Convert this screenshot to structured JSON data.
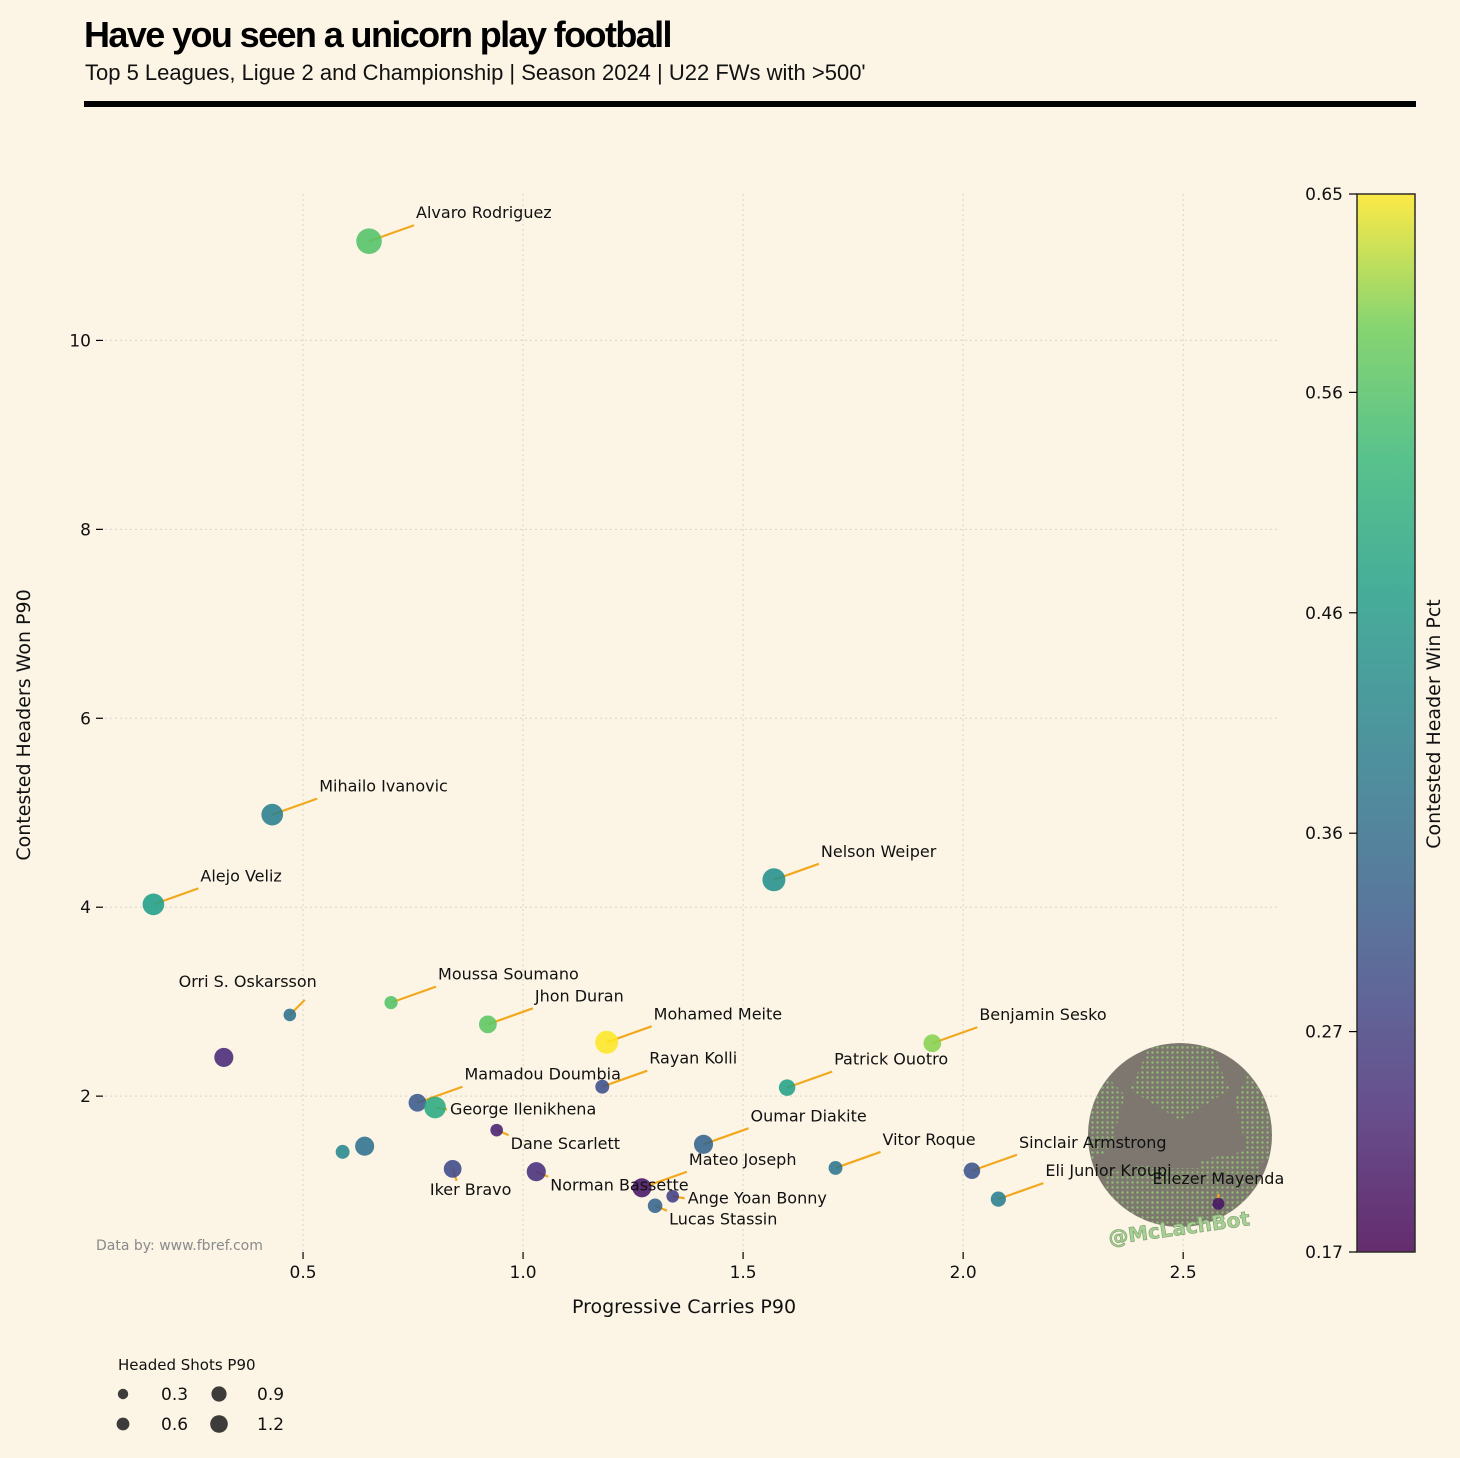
{
  "header": {
    "title": "Have you seen a unicorn play football",
    "subtitle": "Top 5 Leagues, Ligue 2 and Championship | Season 2024 | U22 FWs with >500'"
  },
  "source_note": "Data by: www.fbref.com",
  "watermark": "@McLachBot",
  "colors": {
    "background": "#fcf5e6",
    "leader_line": "#f2a81d",
    "grid": "#d9d3c6",
    "viridis": [
      "#440154",
      "#3b528b",
      "#21918c",
      "#5ec962",
      "#fde725"
    ]
  },
  "chart_data": {
    "type": "scatter",
    "xlabel": "Progressive Carries P90",
    "ylabel": "Contested Headers Won P90",
    "xlim": [
      0.05,
      2.72
    ],
    "ylim": [
      0.35,
      11.55
    ],
    "xticks": [
      0.5,
      1.0,
      1.5,
      2.0,
      2.5
    ],
    "xtick_labels": [
      "0.5",
      "1.0",
      "1.5",
      "2.0",
      "2.5"
    ],
    "yticks": [
      2,
      4,
      6,
      8,
      10
    ],
    "ytick_labels": [
      "2",
      "4",
      "6",
      "8",
      "10"
    ],
    "grid": true,
    "color_variable": "Contested Header Win Pct",
    "size_variable": "Headed Shots P90",
    "colorbar": {
      "label": "Contested Header Win Pct",
      "range": [
        0.17,
        0.65
      ],
      "ticks": [
        0.17,
        0.27,
        0.36,
        0.46,
        0.56,
        0.65
      ],
      "tick_labels": [
        "0.17",
        "0.27",
        "0.36",
        "0.46",
        "0.56",
        "0.65"
      ]
    },
    "size_legend": {
      "title": "Headed Shots P90",
      "entries": [
        {
          "label": "0.3",
          "value": 0.3
        },
        {
          "label": "0.6",
          "value": 0.6
        },
        {
          "label": "0.9",
          "value": 0.9
        },
        {
          "label": "1.2",
          "value": 1.2
        }
      ]
    },
    "points": [
      {
        "name": "Alvaro Rodriguez",
        "x": 0.65,
        "y": 11.05,
        "pct": 0.56,
        "size": 1.2,
        "label": "Alvaro Rodriguez",
        "anchor": "right"
      },
      {
        "name": "Mihailo Ivanovic",
        "x": 0.43,
        "y": 4.98,
        "pct": 0.4,
        "size": 0.9,
        "label": "Mihailo Ivanovic",
        "anchor": "right"
      },
      {
        "name": "Alejo Veliz",
        "x": 0.16,
        "y": 4.03,
        "pct": 0.47,
        "size": 0.9,
        "label": "Alejo Veliz",
        "anchor": "right"
      },
      {
        "name": "Nelson Weiper",
        "x": 1.57,
        "y": 4.29,
        "pct": 0.44,
        "size": 1.0,
        "label": "Nelson Weiper",
        "anchor": "right"
      },
      {
        "name": "Orri S. Oskarsson",
        "x": 0.47,
        "y": 2.86,
        "pct": 0.37,
        "size": 0.2,
        "label": "Orri S. Oskarsson",
        "anchor": "left-above"
      },
      {
        "name": "Moussa Soumano",
        "x": 0.7,
        "y": 2.99,
        "pct": 0.56,
        "size": 0.25,
        "label": "Moussa Soumano",
        "anchor": "right"
      },
      {
        "name": "Jhon Duran",
        "x": 0.92,
        "y": 2.76,
        "pct": 0.57,
        "size": 0.6,
        "label": "Jhon Duran",
        "anchor": "right"
      },
      {
        "name": "Mohamed Meite",
        "x": 1.19,
        "y": 2.57,
        "pct": 0.65,
        "size": 1.0,
        "label": "Mohamed Meite",
        "anchor": "right"
      },
      {
        "name": "Benjamin Sesko",
        "x": 1.93,
        "y": 2.56,
        "pct": 0.6,
        "size": 0.6,
        "label": "Benjamin Sesko",
        "anchor": "right"
      },
      {
        "name": "",
        "x": 0.32,
        "y": 2.41,
        "pct": 0.23,
        "size": 0.7,
        "label": "",
        "anchor": "none"
      },
      {
        "name": "Rayan Kolli",
        "x": 1.18,
        "y": 2.1,
        "pct": 0.3,
        "size": 0.3,
        "label": "Rayan Kolli",
        "anchor": "right"
      },
      {
        "name": "Patrick Ouotro",
        "x": 1.6,
        "y": 2.09,
        "pct": 0.48,
        "size": 0.5,
        "label": "Patrick Ouotro",
        "anchor": "right"
      },
      {
        "name": "Mamadou Doumbia",
        "x": 0.76,
        "y": 1.93,
        "pct": 0.32,
        "size": 0.6,
        "label": "Mamadou Doumbia",
        "anchor": "right"
      },
      {
        "name": "George Ilenikhena",
        "x": 0.8,
        "y": 1.88,
        "pct": 0.5,
        "size": 0.9,
        "label": "George Ilenikhena",
        "anchor": "right-flat"
      },
      {
        "name": "Dane Scarlett",
        "x": 0.94,
        "y": 1.64,
        "pct": 0.22,
        "size": 0.2,
        "label": "Dane Scarlett",
        "anchor": "right-below"
      },
      {
        "name": "",
        "x": 0.64,
        "y": 1.47,
        "pct": 0.37,
        "size": 0.7,
        "label": "",
        "anchor": "none"
      },
      {
        "name": "",
        "x": 0.59,
        "y": 1.41,
        "pct": 0.42,
        "size": 0.3,
        "label": "",
        "anchor": "none"
      },
      {
        "name": "Oumar Diakite",
        "x": 1.41,
        "y": 1.49,
        "pct": 0.34,
        "size": 0.7,
        "label": "Oumar Diakite",
        "anchor": "right"
      },
      {
        "name": "Iker Bravo",
        "x": 0.84,
        "y": 1.23,
        "pct": 0.29,
        "size": 0.6,
        "label": "Iker Bravo",
        "anchor": "below"
      },
      {
        "name": "Norman Bassette",
        "x": 1.03,
        "y": 1.2,
        "pct": 0.24,
        "size": 0.7,
        "label": "Norman Bassette",
        "anchor": "right-below"
      },
      {
        "name": "Mateo Joseph",
        "x": 1.27,
        "y": 1.03,
        "pct": 0.2,
        "size": 0.7,
        "label": "Mateo Joseph",
        "anchor": "right"
      },
      {
        "name": "Vitor Roque",
        "x": 1.71,
        "y": 1.24,
        "pct": 0.38,
        "size": 0.3,
        "label": "Vitor Roque",
        "anchor": "right"
      },
      {
        "name": "Sinclair Armstrong",
        "x": 2.02,
        "y": 1.21,
        "pct": 0.31,
        "size": 0.5,
        "label": "Sinclair Armstrong",
        "anchor": "right"
      },
      {
        "name": "Ange Yoan Bonny",
        "x": 1.34,
        "y": 0.94,
        "pct": 0.27,
        "size": 0.2,
        "label": "Ange Yoan Bonny",
        "anchor": "right-flat"
      },
      {
        "name": "Lucas Stassin",
        "x": 1.3,
        "y": 0.84,
        "pct": 0.34,
        "size": 0.35,
        "label": "Lucas Stassin",
        "anchor": "right-below"
      },
      {
        "name": "Eli Junior Kroupi",
        "x": 2.08,
        "y": 0.91,
        "pct": 0.4,
        "size": 0.4,
        "label": "Eli Junior Kroupi",
        "anchor": "right"
      },
      {
        "name": "Eliezer Mayenda",
        "x": 2.58,
        "y": 0.86,
        "pct": 0.2,
        "size": 0.15,
        "label": "Eliezer Mayenda",
        "anchor": "above"
      }
    ]
  }
}
